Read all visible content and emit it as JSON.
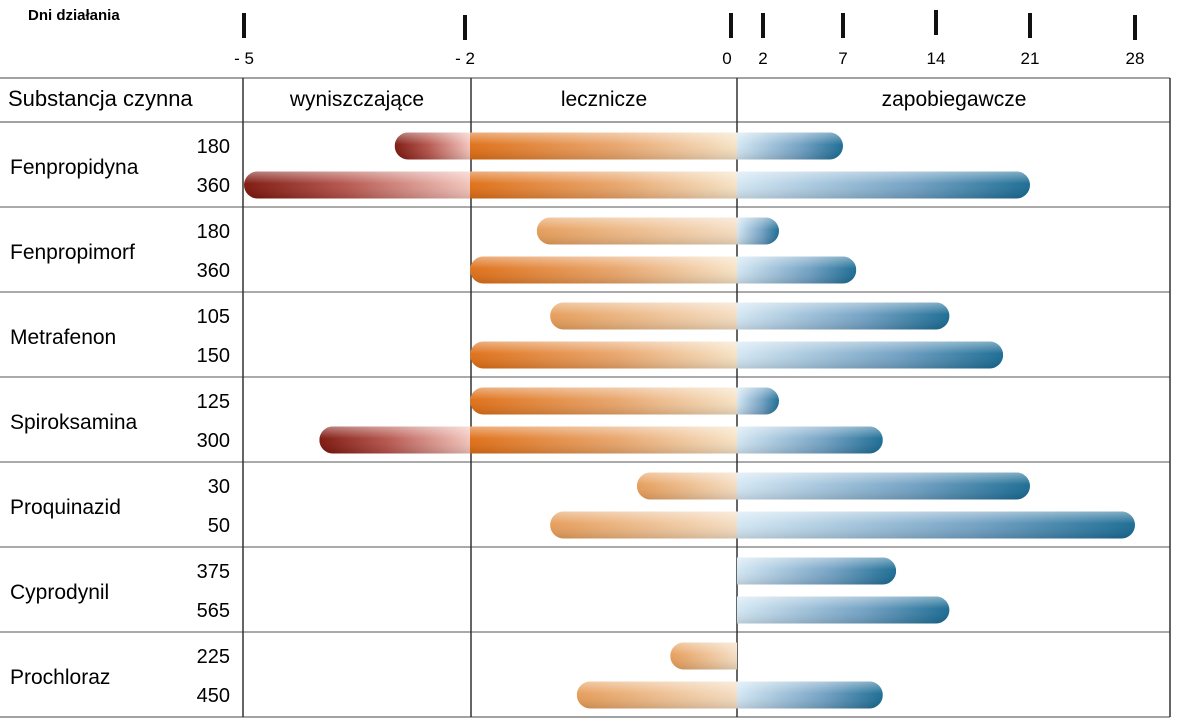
{
  "chart_data": {
    "type": "bar",
    "axis": {
      "title": "Dni działania",
      "ticks": [
        {
          "value": -5,
          "label": "- 5"
        },
        {
          "value": -2,
          "label": "- 2"
        },
        {
          "value": 0,
          "label": "0"
        },
        {
          "value": 2,
          "label": "2"
        },
        {
          "value": 7,
          "label": "7"
        },
        {
          "value": 14,
          "label": "14"
        },
        {
          "value": 21,
          "label": "21"
        },
        {
          "value": 28,
          "label": "28"
        }
      ],
      "line_colors": {
        "negative": "#d0241c",
        "positive": "#e07a2a"
      }
    },
    "row_header": "Substancja czynna",
    "columns": [
      "wyniszczające",
      "lecznicze",
      "zapobiegawcze"
    ],
    "colors": {
      "wyniszczajace": "#8b1a10",
      "lecznicze": "#e2731a",
      "zapobiegawcze": "#1c6f9c"
    },
    "groups": [
      {
        "substance": "Fenpropidyna",
        "rows": [
          {
            "dose": "180",
            "start_day": -3,
            "end_day": 7
          },
          {
            "dose": "360",
            "start_day": -5,
            "end_day": 21
          }
        ]
      },
      {
        "substance": "Fenpropimorf",
        "rows": [
          {
            "dose": "180",
            "start_day": -1.5,
            "end_day": 3
          },
          {
            "dose": "360",
            "start_day": -2,
            "end_day": 8
          }
        ]
      },
      {
        "substance": "Metrafenon",
        "rows": [
          {
            "dose": "105",
            "start_day": -1.4,
            "end_day": 15
          },
          {
            "dose": "150",
            "start_day": -2,
            "end_day": 19
          }
        ]
      },
      {
        "substance": "Spiroksamina",
        "rows": [
          {
            "dose": "125",
            "start_day": -2,
            "end_day": 3
          },
          {
            "dose": "300",
            "start_day": -4,
            "end_day": 10
          }
        ]
      },
      {
        "substance": "Proquinazid",
        "rows": [
          {
            "dose": "30",
            "start_day": -0.75,
            "end_day": 21
          },
          {
            "dose": "50",
            "start_day": -1.4,
            "end_day": 28
          }
        ]
      },
      {
        "substance": "Cyprodynil",
        "rows": [
          {
            "dose": "375",
            "start_day": 0,
            "end_day": 11
          },
          {
            "dose": "565",
            "start_day": 0,
            "end_day": 15
          }
        ]
      },
      {
        "substance": "Prochloraz",
        "rows": [
          {
            "dose": "225",
            "start_day": -0.5,
            "end_day": 0
          },
          {
            "dose": "450",
            "start_day": -1.2,
            "end_day": 10
          }
        ]
      }
    ]
  }
}
